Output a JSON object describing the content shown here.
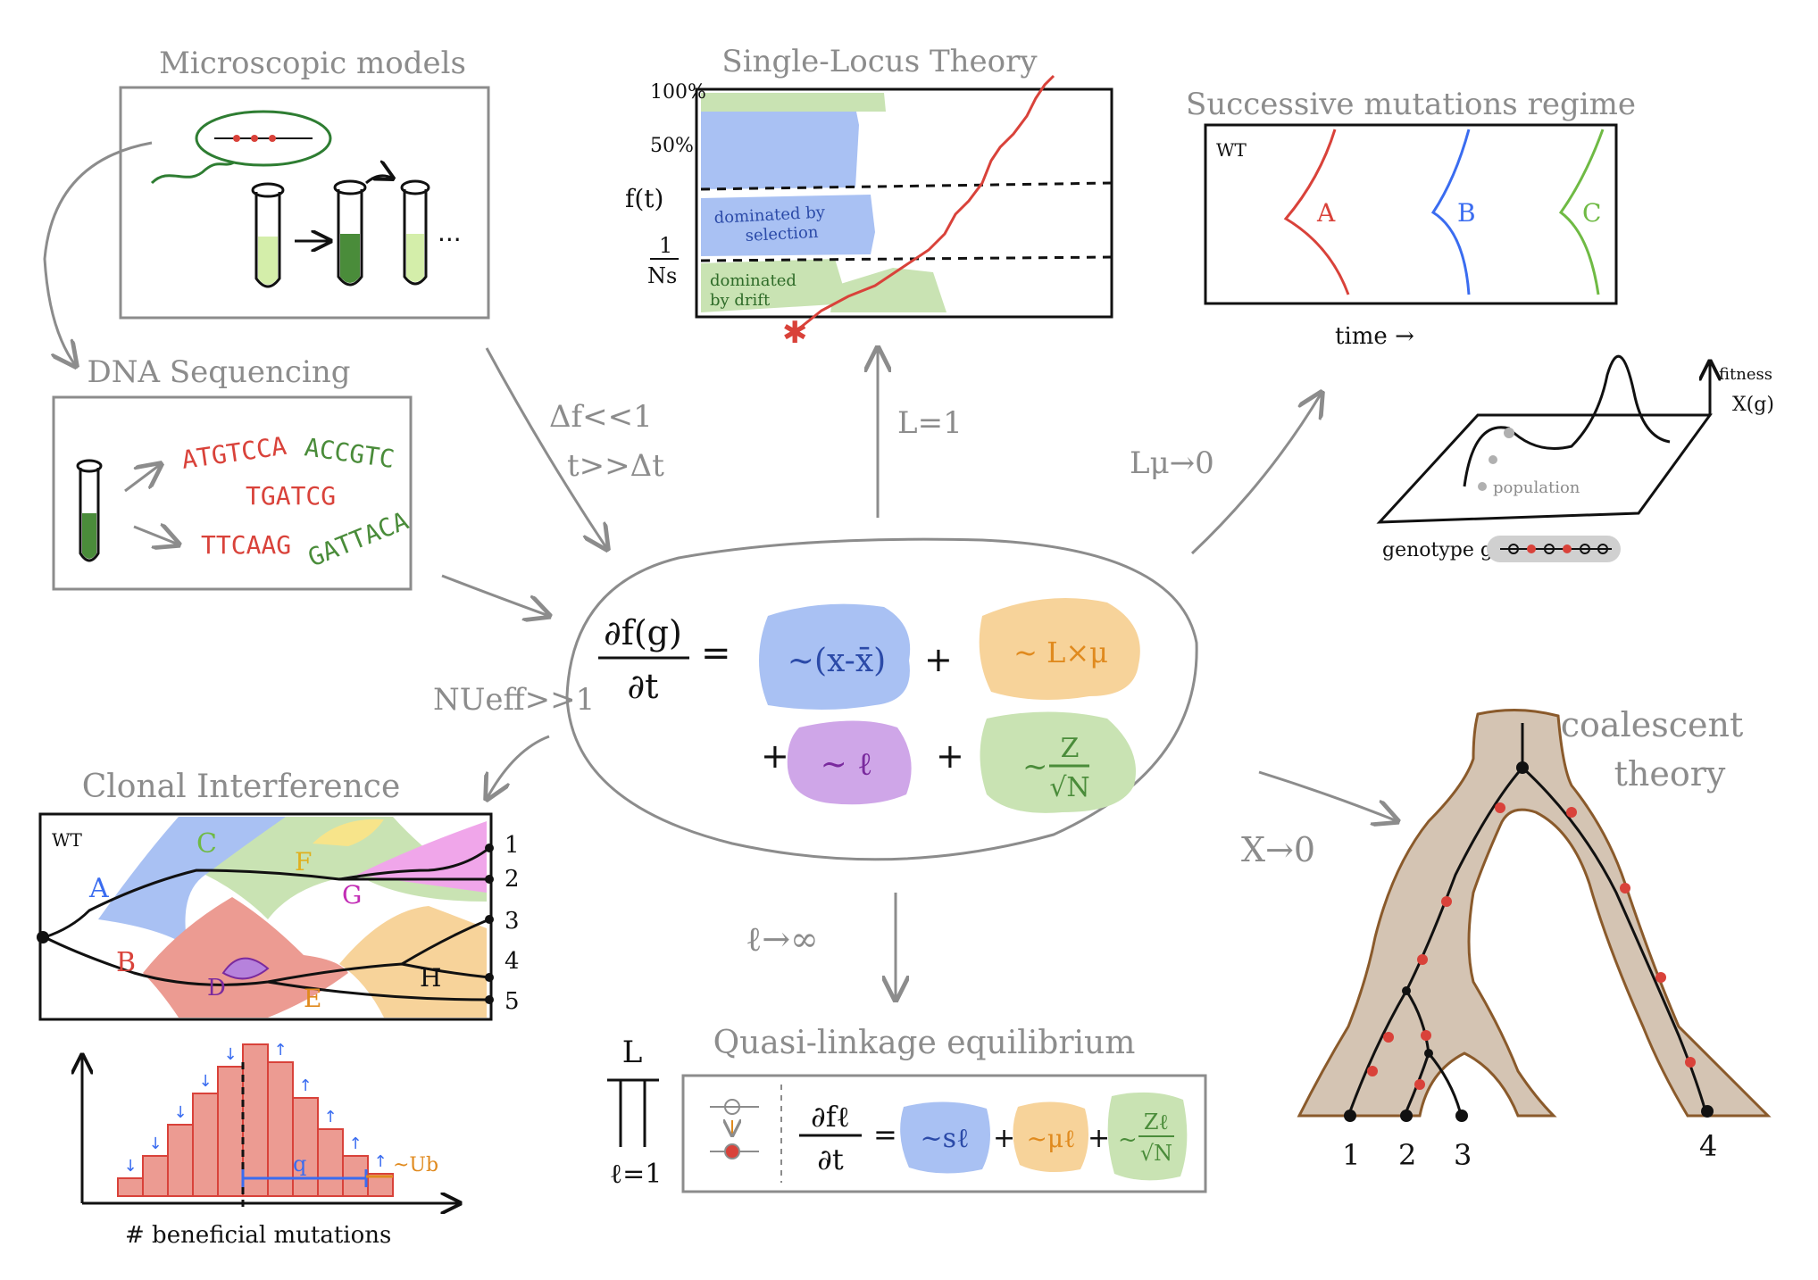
{
  "colors": {
    "gray": "#8c8c8c",
    "black": "#111111",
    "blue": "#a9c1f3",
    "orange": "#f7d39a",
    "purple": "#cfa6e8",
    "green": "#c9e3b3",
    "red": "#d9423a",
    "tree_fill": "#d4c4b3",
    "tree_edge": "#8a5a2b"
  },
  "micro": {
    "title": "Microscopic models",
    "ellipsis": "..."
  },
  "dna": {
    "title": "DNA Sequencing",
    "seqs": [
      "ATGTCCA",
      "ACCGTC",
      "TGATCG",
      "TTCAAG",
      "GATTACA"
    ]
  },
  "single_locus": {
    "title": "Single-Locus Theory",
    "y100": "100%",
    "y50": "50%",
    "yf": "f(t)",
    "y1": "1",
    "yNs": "Ns",
    "selection_label_1": "dominated by",
    "selection_label_2": "selection",
    "drift_label_1": "dominated",
    "drift_label_2": "by drift"
  },
  "successive": {
    "title": "Successive mutations regime",
    "wt": "WT",
    "a": "A",
    "b": "B",
    "c": "C",
    "time": "time →"
  },
  "landscape": {
    "fitness_1": "fitness",
    "fitness_2": "X(g)",
    "population": "population",
    "genotype": "genotype g"
  },
  "center": {
    "lhs_num": "∂f(g)",
    "lhs_den": "∂t",
    "eq": "=",
    "t_sel": "~(x-x̄)",
    "t_mut": "~ L×μ",
    "t_rec": "~ ℓ",
    "t_noise_top": "Z",
    "t_noise_bot": "√N",
    "t_noise_tilde": "~",
    "plus": "+"
  },
  "arrows": {
    "micro_cond_1": "Δf<<1",
    "micro_cond_2": "t>>Δt",
    "single": "L=1",
    "successive": "Lμ→0",
    "clonal": "NUeff>>1",
    "coalescent": "X→0",
    "qle": "ℓ→∞"
  },
  "clonal": {
    "title": "Clonal Interference",
    "wt": "WT",
    "labels": [
      "A",
      "B",
      "C",
      "D",
      "E",
      "F",
      "G",
      "H"
    ],
    "lineages": [
      "1",
      "2",
      "3",
      "4",
      "5"
    ]
  },
  "histogram": {
    "xlabel": "# beneficial mutations",
    "q": "q",
    "ub": "~Ub"
  },
  "qle": {
    "title": "Quasi-linkage equilibrium",
    "L": "L",
    "l1": "ℓ=1",
    "num": "∂fℓ",
    "den": "∂t",
    "eq": "=",
    "t_sel": "~sℓ",
    "t_mut": "~μℓ",
    "t_noise_top": "Zℓ",
    "t_noise_bot": "√N",
    "plus": "+"
  },
  "coalescent": {
    "title_1": "coalescent",
    "title_2": "theory",
    "leaves": [
      "1",
      "2",
      "3",
      "4"
    ]
  }
}
